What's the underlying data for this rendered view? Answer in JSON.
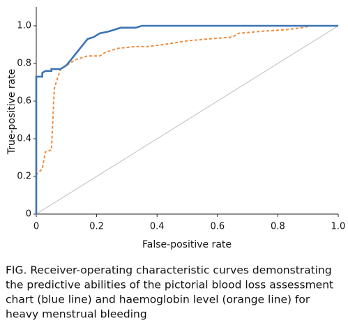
{
  "chart_data": {
    "type": "line",
    "x_label": "False-positive rate",
    "y_label": "True-positive rate",
    "xlim": [
      0,
      1
    ],
    "ylim": [
      0,
      1.1
    ],
    "xticks": [
      0,
      0.2,
      0.4,
      0.6,
      0.8,
      {
        "value": 1,
        "label": "1.0"
      }
    ],
    "yticks": [
      0,
      0.2,
      0.4,
      0.6,
      0.8,
      {
        "value": 1,
        "label": "1.0"
      }
    ],
    "series": [
      {
        "color": "#c8c8c8",
        "dashed": false,
        "x": [
          0,
          1
        ],
        "values": [
          0,
          1
        ]
      },
      {
        "color": "#f08a3c",
        "dashed": true,
        "x": [
          0,
          0,
          0.02,
          0.03,
          0.05,
          0.06,
          0.07,
          0.08,
          0.1,
          0.13,
          0.17,
          0.21,
          0.23,
          0.27,
          0.33,
          0.37,
          0.42,
          0.5,
          0.57,
          0.65,
          0.67,
          0.74,
          0.83,
          0.88,
          0.91,
          1
        ],
        "values": [
          0,
          0.21,
          0.24,
          0.33,
          0.34,
          0.67,
          0.72,
          0.77,
          0.79,
          0.82,
          0.84,
          0.84,
          0.86,
          0.88,
          0.89,
          0.89,
          0.9,
          0.92,
          0.93,
          0.94,
          0.96,
          0.97,
          0.98,
          0.99,
          1,
          1
        ]
      },
      {
        "color": "#3a73b5",
        "dashed": false,
        "x": [
          0,
          0,
          0.02,
          0.02,
          0.03,
          0.05,
          0.05,
          0.08,
          0.1,
          0.11,
          0.12,
          0.13,
          0.14,
          0.15,
          0.16,
          0.17,
          0.19,
          0.21,
          0.24,
          0.28,
          0.33,
          0.35,
          1
        ],
        "values": [
          0,
          0.73,
          0.73,
          0.75,
          0.76,
          0.76,
          0.77,
          0.77,
          0.79,
          0.81,
          0.83,
          0.85,
          0.87,
          0.89,
          0.91,
          0.93,
          0.94,
          0.96,
          0.97,
          0.99,
          0.99,
          1,
          1
        ]
      }
    ],
    "caption": [
      "FIG.  Receiver-operating characteristic curves demonstrating",
      "the predictive abilities of the pictorial blood loss assessment",
      "chart (blue line) and haemoglobin level (orange line) for",
      "heavy menstrual bleeding"
    ]
  }
}
